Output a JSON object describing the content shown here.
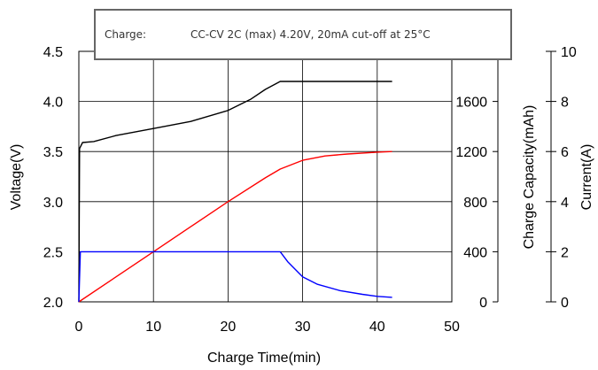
{
  "chart_data": {
    "type": "line",
    "annotation": {
      "label": "Charge:",
      "text": "CC-CV 2C (max) 4.20V, 20mA cut-off at 25°C"
    },
    "x_axis": {
      "label": "Charge Time(min)",
      "range": [
        0,
        50
      ],
      "ticks": [
        0,
        10,
        20,
        30,
        40,
        50
      ],
      "tick_labels": [
        "0",
        "10",
        "20",
        "30",
        "40",
        "50"
      ]
    },
    "y_axis_left": {
      "label": "Voltage(V)",
      "range": [
        2.0,
        4.5
      ],
      "ticks": [
        2.0,
        2.5,
        3.0,
        3.5,
        4.0,
        4.5
      ],
      "tick_labels": [
        "2.0",
        "2.5",
        "3.0",
        "3.5",
        "4.0",
        "4.5"
      ]
    },
    "y_axis_capacity": {
      "label": "Charge Capacity(mAh)",
      "range": [
        0,
        2000
      ],
      "ticks": [
        0,
        400,
        800,
        1200,
        1600,
        2000
      ],
      "tick_labels": [
        "0",
        "400",
        "800",
        "1200",
        "1600",
        "2000"
      ]
    },
    "y_axis_current": {
      "label": "Current(A)",
      "range": [
        0,
        10
      ],
      "ticks": [
        0,
        2,
        4,
        6,
        8,
        10
      ],
      "tick_labels": [
        "0",
        "2",
        "4",
        "6",
        "8",
        "10"
      ]
    },
    "grid": true,
    "series": [
      {
        "axis": "voltage",
        "color": "#000000",
        "points": [
          [
            0,
            2.0
          ],
          [
            0.1,
            3.53
          ],
          [
            0.5,
            3.59
          ],
          [
            2,
            3.6
          ],
          [
            5,
            3.66
          ],
          [
            10,
            3.73
          ],
          [
            15,
            3.8
          ],
          [
            20,
            3.91
          ],
          [
            23,
            4.02
          ],
          [
            25,
            4.12
          ],
          [
            27,
            4.2
          ],
          [
            42,
            4.2
          ]
        ]
      },
      {
        "axis": "capacity",
        "color": "#ff0000",
        "points": [
          [
            0,
            0
          ],
          [
            5,
            200
          ],
          [
            10,
            400
          ],
          [
            15,
            600
          ],
          [
            20,
            800
          ],
          [
            25,
            990
          ],
          [
            27,
            1060
          ],
          [
            30,
            1130
          ],
          [
            33,
            1165
          ],
          [
            36,
            1180
          ],
          [
            40,
            1195
          ],
          [
            42,
            1200
          ]
        ]
      },
      {
        "axis": "current",
        "color": "#0000ff",
        "points": [
          [
            0,
            0
          ],
          [
            0.2,
            2.0
          ],
          [
            27,
            2.0
          ],
          [
            28,
            1.6
          ],
          [
            30,
            1.0
          ],
          [
            32,
            0.7
          ],
          [
            35,
            0.45
          ],
          [
            38,
            0.3
          ],
          [
            40,
            0.22
          ],
          [
            42,
            0.18
          ]
        ]
      }
    ]
  }
}
